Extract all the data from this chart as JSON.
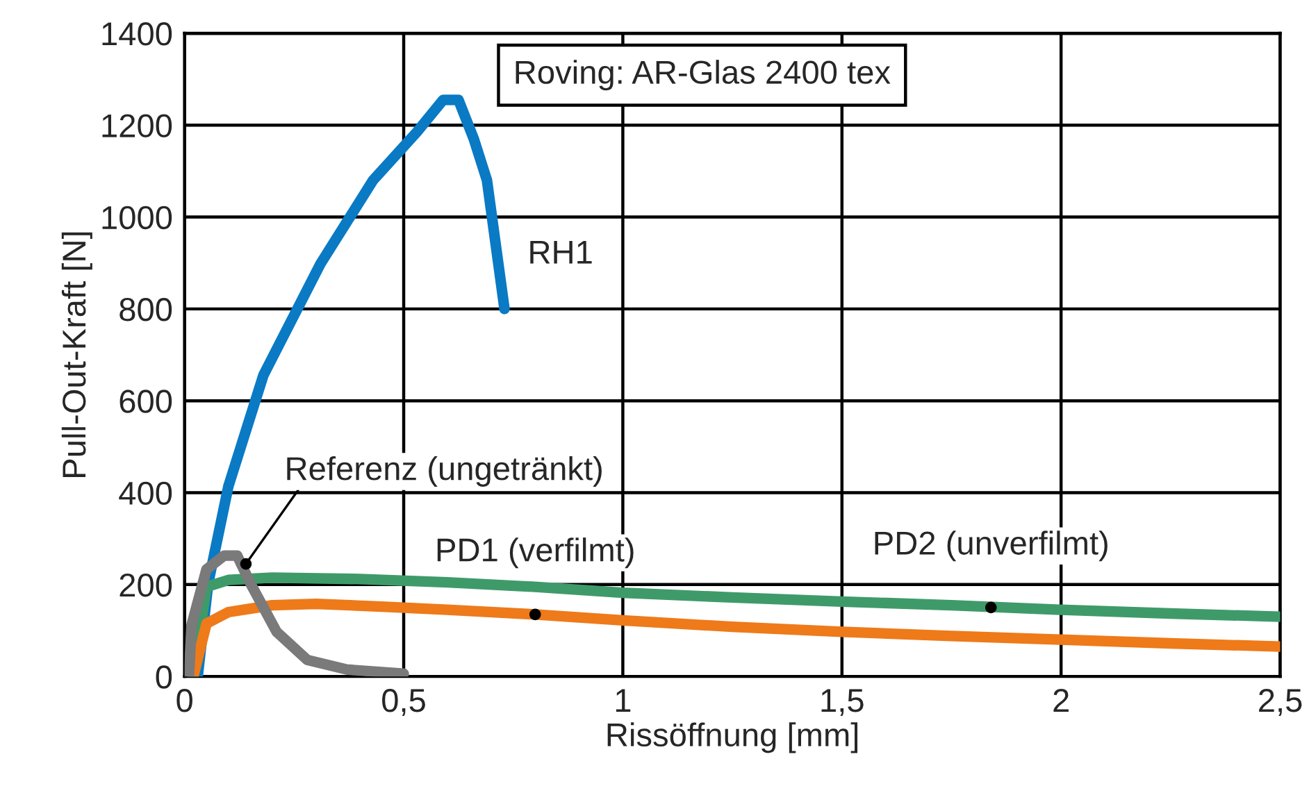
{
  "chart_data": {
    "type": "line",
    "xlabel": "Rissöffnung [mm]",
    "ylabel": "Pull-Out-Kraft [N]",
    "xlim": [
      0,
      2.5
    ],
    "ylim": [
      0,
      1400
    ],
    "xticks": [
      0,
      {
        "value": 0.5,
        "label": "0,5"
      },
      1,
      {
        "value": 1.5,
        "label": "1,5"
      },
      2,
      {
        "value": 2.5,
        "label": "2,5"
      }
    ],
    "yticks": [
      0,
      200,
      400,
      600,
      800,
      1000,
      1200,
      1400
    ],
    "grid": true,
    "marker": "none",
    "line_style": "solid",
    "series": [
      {
        "color": "#0a7ac4",
        "x": [
          0.03,
          0.054,
          0.1,
          0.18,
          0.31,
          0.43,
          0.53,
          0.59,
          0.625,
          0.66,
          0.69,
          0.73
        ],
        "values": [
          0,
          203,
          414,
          656,
          898,
          1080,
          1185,
          1255,
          1255,
          1170,
          1080,
          800
        ]
      },
      {
        "color": "#3f9a6a",
        "x": [
          0.02,
          0.05,
          0.1,
          0.2,
          0.4,
          0.6,
          0.8,
          1.0,
          1.25,
          1.5,
          1.75,
          2.0,
          2.25,
          2.5
        ],
        "values": [
          0,
          195,
          210,
          215,
          212,
          205,
          195,
          182,
          172,
          163,
          155,
          145,
          137,
          130
        ]
      },
      {
        "color": "#ee7a1a",
        "x": [
          0.02,
          0.05,
          0.1,
          0.2,
          0.3,
          0.45,
          0.6,
          0.8,
          1.0,
          1.25,
          1.5,
          1.75,
          2.0,
          2.25,
          2.5
        ],
        "values": [
          0,
          115,
          140,
          155,
          158,
          152,
          145,
          135,
          122,
          108,
          97,
          88,
          80,
          72,
          65
        ]
      },
      {
        "color": "#7a7a7a",
        "x": [
          0.01,
          0.016,
          0.05,
          0.09,
          0.12,
          0.15,
          0.21,
          0.28,
          0.37,
          0.5
        ],
        "values": [
          0,
          112,
          233,
          263,
          263,
          203,
          97,
          36,
          15,
          6
        ]
      }
    ],
    "annotations": [
      "Roving: AR-Glas 2400 tex",
      {
        "text": "RH1",
        "x": 0.73,
        "y": 800
      },
      {
        "text": "Referenz (ungetränkt)",
        "x": 0.14,
        "y": 245
      },
      {
        "text": "PD1 (verfilmt)",
        "x": 0.8,
        "y": 135
      },
      {
        "text": "PD2 (unverfilmt)",
        "x": 1.84,
        "y": 150
      }
    ]
  }
}
